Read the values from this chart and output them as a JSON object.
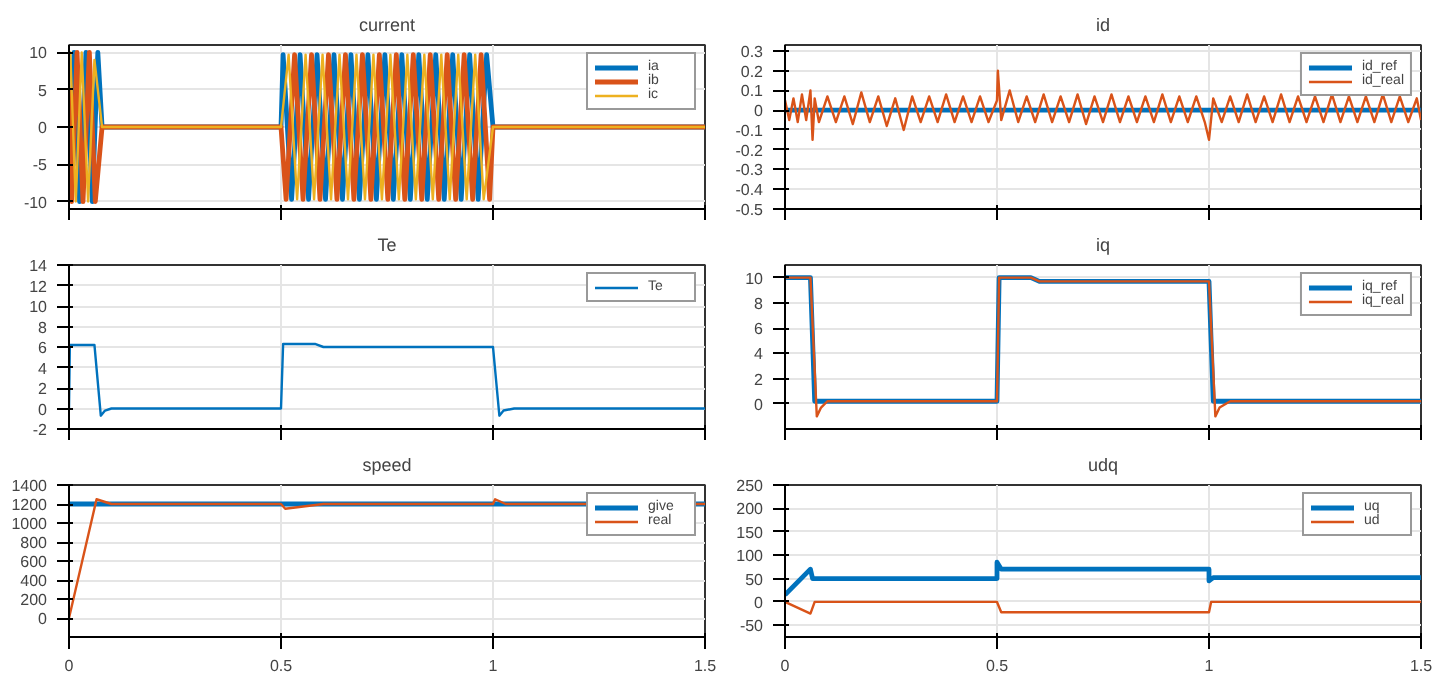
{
  "chart_data": [
    {
      "type": "line",
      "title": "current",
      "xlim": [
        0,
        1.5
      ],
      "xticks": [
        0,
        0.5,
        1,
        1.5
      ],
      "ylim": [
        -11,
        11
      ],
      "yticks": [
        -10,
        -5,
        0,
        5,
        10
      ],
      "grid": true,
      "legend": "top right",
      "tick_labels": "y",
      "series": [
        {
          "name": "ia",
          "color": "#0072bd",
          "x": [
            0,
            0.012,
            0.025,
            0.04,
            0.055,
            0.068,
            0.078,
            0.5,
            0.505,
            0.525,
            0.545,
            0.565,
            0.585,
            0.605,
            0.625,
            0.645,
            0.665,
            0.685,
            0.705,
            0.725,
            0.745,
            0.765,
            0.785,
            0.805,
            0.825,
            0.845,
            0.865,
            0.885,
            0.905,
            0.925,
            0.945,
            0.965,
            0.985,
            1.0,
            1.5
          ],
          "values": [
            -10,
            10,
            -10,
            10,
            -10,
            10,
            0,
            0,
            9.7,
            -9.7,
            9.7,
            -9.7,
            9.7,
            -9.7,
            9.7,
            -9.7,
            9.7,
            -9.7,
            9.7,
            -9.7,
            9.7,
            -9.7,
            9.7,
            -9.7,
            9.7,
            -9.7,
            9.7,
            -9.7,
            9.7,
            -9.7,
            9.7,
            -9.7,
            9.7,
            0,
            0
          ]
        },
        {
          "name": "ib",
          "color": "#d95319",
          "x": [
            0,
            0.006,
            0.019,
            0.033,
            0.048,
            0.062,
            0.078,
            0.5,
            0.512,
            0.532,
            0.552,
            0.572,
            0.592,
            0.612,
            0.632,
            0.652,
            0.672,
            0.692,
            0.712,
            0.732,
            0.752,
            0.772,
            0.792,
            0.812,
            0.832,
            0.852,
            0.872,
            0.892,
            0.912,
            0.932,
            0.952,
            0.972,
            0.992,
            1.0,
            1.5
          ],
          "values": [
            5,
            -10,
            10,
            -10,
            10,
            -10,
            0,
            0,
            -9.7,
            9.7,
            -9.7,
            9.7,
            -9.7,
            9.7,
            -9.7,
            9.7,
            -9.7,
            9.7,
            -9.7,
            9.7,
            -9.7,
            9.7,
            -9.7,
            9.7,
            -9.7,
            9.7,
            -9.7,
            9.7,
            -9.7,
            9.7,
            -9.7,
            9.7,
            -9.7,
            0,
            0
          ]
        },
        {
          "name": "ic",
          "color": "#edb120",
          "x": [
            0,
            0.003,
            0.016,
            0.03,
            0.045,
            0.06,
            0.078,
            0.5,
            0.518,
            0.538,
            0.558,
            0.578,
            0.598,
            0.618,
            0.638,
            0.658,
            0.678,
            0.698,
            0.718,
            0.738,
            0.758,
            0.778,
            0.798,
            0.818,
            0.838,
            0.858,
            0.878,
            0.898,
            0.918,
            0.938,
            0.958,
            0.978,
            1.0,
            1.5
          ],
          "values": [
            9,
            10,
            -10,
            10,
            -10,
            9,
            0,
            0,
            9.7,
            -9.7,
            9.7,
            -9.7,
            9.7,
            -9.7,
            9.7,
            -9.7,
            9.7,
            -9.7,
            9.7,
            -9.7,
            9.7,
            -9.7,
            9.7,
            -9.7,
            9.7,
            -9.7,
            9.7,
            -9.7,
            9.7,
            -9.7,
            9.7,
            -9.7,
            0,
            0
          ]
        }
      ]
    },
    {
      "type": "line",
      "title": "id",
      "xlim": [
        0,
        1.5
      ],
      "xticks": [
        0,
        0.5,
        1,
        1.5
      ],
      "ylim": [
        -0.5,
        0.33
      ],
      "yticks": [
        -0.5,
        -0.4,
        -0.3,
        -0.2,
        -0.1,
        0,
        0.1,
        0.2,
        0.3
      ],
      "grid": true,
      "legend": "top right",
      "tick_labels": "y",
      "series": [
        {
          "name": "id_ref",
          "color": "#0072bd",
          "x": [
            0,
            1.5
          ],
          "values": [
            0,
            0
          ]
        },
        {
          "name": "id_real",
          "color": "#d95319",
          "x": [
            0,
            0.01,
            0.02,
            0.03,
            0.04,
            0.05,
            0.06,
            0.065,
            0.07,
            0.08,
            0.1,
            0.12,
            0.14,
            0.16,
            0.18,
            0.2,
            0.22,
            0.24,
            0.26,
            0.28,
            0.3,
            0.32,
            0.34,
            0.36,
            0.38,
            0.4,
            0.42,
            0.44,
            0.46,
            0.48,
            0.5,
            0.502,
            0.51,
            0.53,
            0.55,
            0.57,
            0.59,
            0.61,
            0.63,
            0.65,
            0.67,
            0.69,
            0.71,
            0.73,
            0.75,
            0.77,
            0.79,
            0.81,
            0.83,
            0.85,
            0.87,
            0.89,
            0.91,
            0.93,
            0.95,
            0.97,
            0.99,
            1.0,
            1.01,
            1.03,
            1.05,
            1.07,
            1.09,
            1.11,
            1.13,
            1.15,
            1.17,
            1.19,
            1.21,
            1.23,
            1.25,
            1.27,
            1.29,
            1.31,
            1.33,
            1.35,
            1.37,
            1.39,
            1.41,
            1.43,
            1.45,
            1.47,
            1.49,
            1.5
          ],
          "values": [
            0.05,
            -0.05,
            0.06,
            -0.06,
            0.08,
            -0.05,
            0.1,
            -0.15,
            0.06,
            -0.06,
            0.07,
            -0.06,
            0.07,
            -0.07,
            0.09,
            -0.06,
            0.07,
            -0.08,
            0.06,
            -0.1,
            0.07,
            -0.06,
            0.07,
            -0.06,
            0.08,
            -0.06,
            0.07,
            -0.06,
            0.07,
            -0.06,
            0.05,
            0.2,
            -0.05,
            0.1,
            -0.06,
            0.07,
            -0.06,
            0.08,
            -0.06,
            0.07,
            -0.06,
            0.08,
            -0.07,
            0.07,
            -0.06,
            0.08,
            -0.06,
            0.07,
            -0.06,
            0.07,
            -0.06,
            0.08,
            -0.06,
            0.07,
            -0.06,
            0.07,
            -0.06,
            -0.15,
            0.06,
            -0.06,
            0.07,
            -0.06,
            0.08,
            -0.06,
            0.07,
            -0.06,
            0.08,
            -0.06,
            0.07,
            -0.06,
            0.07,
            -0.06,
            0.08,
            -0.06,
            0.07,
            -0.06,
            0.07,
            -0.06,
            0.08,
            -0.06,
            0.07,
            -0.06,
            0.06,
            -0.05
          ]
        }
      ]
    },
    {
      "type": "line",
      "title": "Te",
      "xlim": [
        0,
        1.5
      ],
      "xticks": [
        0,
        0.5,
        1,
        1.5
      ],
      "ylim": [
        -2,
        14
      ],
      "yticks": [
        -2,
        0,
        2,
        4,
        6,
        8,
        10,
        12,
        14
      ],
      "grid": true,
      "legend": "top right",
      "tick_labels": "y",
      "series": [
        {
          "name": "Te",
          "color": "#0072bd",
          "x": [
            0,
            0.002,
            0.06,
            0.075,
            0.085,
            0.1,
            0.5,
            0.505,
            0.58,
            0.6,
            1.0,
            1.015,
            1.025,
            1.05,
            1.5
          ],
          "values": [
            0,
            6.2,
            6.2,
            -0.7,
            -0.2,
            0,
            0,
            6.3,
            6.3,
            6.0,
            6.0,
            -0.7,
            -0.2,
            0,
            0
          ]
        }
      ]
    },
    {
      "type": "line",
      "title": "iq",
      "xlim": [
        0,
        1.5
      ],
      "xticks": [
        0,
        0.5,
        1,
        1.5
      ],
      "ylim": [
        -2,
        11
      ],
      "yticks": [
        0,
        2,
        4,
        6,
        8,
        10
      ],
      "grid": true,
      "legend": "top right",
      "tick_labels": "y",
      "series": [
        {
          "name": "iq_ref",
          "color": "#0072bd",
          "x": [
            0,
            0.06,
            0.07,
            0.5,
            0.505,
            0.58,
            0.6,
            1.0,
            1.01,
            1.5
          ],
          "values": [
            10,
            10,
            0.2,
            0.2,
            10,
            10,
            9.7,
            9.7,
            0.2,
            0.2
          ]
        },
        {
          "name": "iq_real",
          "color": "#d95319",
          "x": [
            0,
            0.06,
            0.075,
            0.085,
            0.1,
            0.5,
            0.505,
            0.58,
            0.6,
            1.0,
            1.015,
            1.025,
            1.05,
            1.5
          ],
          "values": [
            10,
            10,
            -1,
            -0.3,
            0.2,
            0.2,
            10,
            10,
            9.7,
            9.7,
            -1,
            -0.3,
            0.2,
            0.2
          ]
        }
      ]
    },
    {
      "type": "line",
      "title": "speed",
      "xlim": [
        0,
        1.5
      ],
      "xticks": [
        0,
        0.5,
        1,
        1.5
      ],
      "ylim": [
        -200,
        1400
      ],
      "yticks": [
        0,
        200,
        400,
        600,
        800,
        1000,
        1200,
        1400
      ],
      "grid": true,
      "legend": "top right",
      "series": [
        {
          "name": "give",
          "color": "#0072bd",
          "x": [
            0,
            1.5
          ],
          "values": [
            1200,
            1200
          ]
        },
        {
          "name": "real",
          "color": "#d95319",
          "x": [
            0,
            0.065,
            0.1,
            0.5,
            0.51,
            0.6,
            1.0,
            1.005,
            1.03,
            1.5
          ],
          "values": [
            0,
            1250,
            1200,
            1200,
            1150,
            1200,
            1200,
            1250,
            1200,
            1200
          ]
        }
      ]
    },
    {
      "type": "line",
      "title": "udq",
      "xlim": [
        0,
        1.5
      ],
      "xticks": [
        0,
        0.5,
        1,
        1.5
      ],
      "ylim": [
        -75,
        250
      ],
      "yticks": [
        -50,
        0,
        50,
        100,
        150,
        200,
        250
      ],
      "grid": true,
      "legend": "top right",
      "series": [
        {
          "name": "uq",
          "color": "#0072bd",
          "x": [
            0,
            0.06,
            0.065,
            0.5,
            0.5,
            0.51,
            1.0,
            1.0,
            1.01,
            1.5
          ],
          "values": [
            15,
            70,
            50,
            50,
            85,
            70,
            70,
            45,
            52,
            52
          ]
        },
        {
          "name": "ud",
          "color": "#d95319",
          "x": [
            0,
            0.06,
            0.07,
            0.5,
            0.51,
            1.0,
            1.005,
            1.5
          ],
          "values": [
            0,
            -25,
            0,
            0,
            -22,
            -22,
            0,
            0
          ]
        }
      ]
    }
  ]
}
